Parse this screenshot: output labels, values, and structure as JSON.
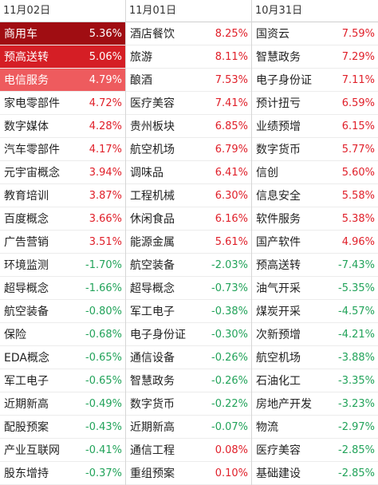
{
  "columns": [
    {
      "date": "11月02日",
      "rows": [
        {
          "name": "商用车",
          "value": "5.36%"
        },
        {
          "name": "预高送转",
          "value": "5.06%"
        },
        {
          "name": "电信服务",
          "value": "4.79%"
        },
        {
          "name": "家电零部件",
          "value": "4.72%"
        },
        {
          "name": "数字媒体",
          "value": "4.28%"
        },
        {
          "name": "汽车零部件",
          "value": "4.17%"
        },
        {
          "name": "元宇宙概念",
          "value": "3.94%"
        },
        {
          "name": "教育培训",
          "value": "3.87%"
        },
        {
          "name": "百度概念",
          "value": "3.66%"
        },
        {
          "name": "广告营销",
          "value": "3.51%"
        },
        {
          "name": "环境监测",
          "value": "-1.70%"
        },
        {
          "name": "超导概念",
          "value": "-1.66%"
        },
        {
          "name": "航空装备",
          "value": "-0.80%"
        },
        {
          "name": "保险",
          "value": "-0.68%"
        },
        {
          "name": "EDA概念",
          "value": "-0.65%"
        },
        {
          "name": "军工电子",
          "value": "-0.65%"
        },
        {
          "name": "近期新高",
          "value": "-0.49%"
        },
        {
          "name": "配股预案",
          "value": "-0.43%"
        },
        {
          "name": "产业互联网",
          "value": "-0.41%"
        },
        {
          "name": "股东增持",
          "value": "-0.37%"
        }
      ]
    },
    {
      "date": "11月01日",
      "rows": [
        {
          "name": "酒店餐饮",
          "value": "8.25%"
        },
        {
          "name": "旅游",
          "value": "8.11%"
        },
        {
          "name": "酿酒",
          "value": "7.53%"
        },
        {
          "name": "医疗美容",
          "value": "7.41%"
        },
        {
          "name": "贵州板块",
          "value": "6.85%"
        },
        {
          "name": "航空机场",
          "value": "6.79%"
        },
        {
          "name": "调味品",
          "value": "6.41%"
        },
        {
          "name": "工程机械",
          "value": "6.30%"
        },
        {
          "name": "休闲食品",
          "value": "6.16%"
        },
        {
          "name": "能源金属",
          "value": "5.61%"
        },
        {
          "name": "航空装备",
          "value": "-2.03%"
        },
        {
          "name": "超导概念",
          "value": "-0.73%"
        },
        {
          "name": "军工电子",
          "value": "-0.38%"
        },
        {
          "name": "电子身份证",
          "value": "-0.30%"
        },
        {
          "name": "通信设备",
          "value": "-0.26%"
        },
        {
          "name": "智慧政务",
          "value": "-0.26%"
        },
        {
          "name": "数字货币",
          "value": "-0.22%"
        },
        {
          "name": "近期新高",
          "value": "-0.07%"
        },
        {
          "name": "通信工程",
          "value": "0.08%"
        },
        {
          "name": "重组预案",
          "value": "0.10%"
        }
      ]
    },
    {
      "date": "10月31日",
      "rows": [
        {
          "name": "国资云",
          "value": "7.59%"
        },
        {
          "name": "智慧政务",
          "value": "7.29%"
        },
        {
          "name": "电子身份证",
          "value": "7.11%"
        },
        {
          "name": "预计扭亏",
          "value": "6.59%"
        },
        {
          "name": "业绩预增",
          "value": "6.15%"
        },
        {
          "name": "数字货币",
          "value": "5.77%"
        },
        {
          "name": "信创",
          "value": "5.60%"
        },
        {
          "name": "信息安全",
          "value": "5.58%"
        },
        {
          "name": "软件服务",
          "value": "5.38%"
        },
        {
          "name": "国产软件",
          "value": "4.96%"
        },
        {
          "name": "预高送转",
          "value": "-7.43%"
        },
        {
          "name": "油气开采",
          "value": "-5.35%"
        },
        {
          "name": "煤炭开采",
          "value": "-4.57%"
        },
        {
          "name": "次新预增",
          "value": "-4.21%"
        },
        {
          "name": "航空机场",
          "value": "-3.88%"
        },
        {
          "name": "石油化工",
          "value": "-3.35%"
        },
        {
          "name": "房地产开发",
          "value": "-3.23%"
        },
        {
          "name": "物流",
          "value": "-2.97%"
        },
        {
          "name": "医疗美容",
          "value": "-2.85%"
        },
        {
          "name": "基础建设",
          "value": "-2.85%"
        }
      ]
    }
  ],
  "colors": {
    "up": "#e0202a",
    "down": "#22a35a",
    "highlight_1": "#a00d12",
    "highlight_2": "#d51e25",
    "highlight_3": "#ee5b5e"
  }
}
